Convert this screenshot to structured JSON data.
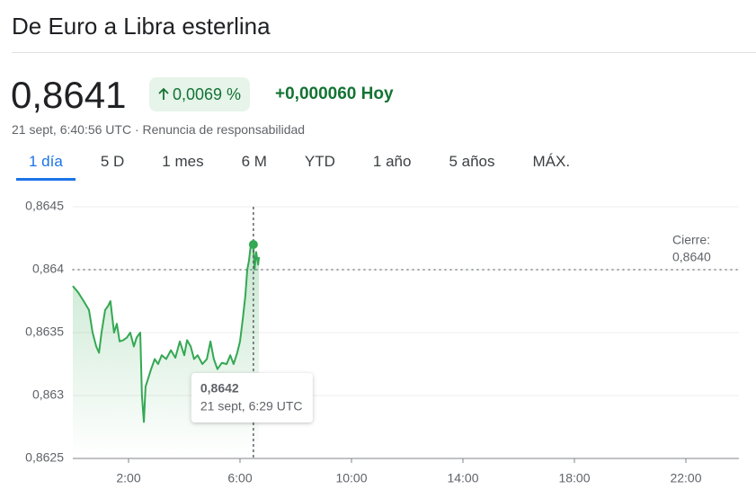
{
  "header": {
    "title": "De Euro a Libra esterlina",
    "price": "0,8641",
    "change_percent": "0,0069 %",
    "change_today": "+0,000060 Hoy",
    "timestamp": "21 sept, 6:40:56 UTC · Renuncia de responsabilidad"
  },
  "tabs": {
    "items": [
      "1 día",
      "5 D",
      "1 mes",
      "6 M",
      "YTD",
      "1 año",
      "5 años",
      "MÁX."
    ],
    "selected": 0
  },
  "chart_data": {
    "type": "line",
    "color": "#34a853",
    "x": [
      0.0,
      0.19,
      0.39,
      0.58,
      0.71,
      0.84,
      0.94,
      1.03,
      1.16,
      1.26,
      1.35,
      1.48,
      1.58,
      1.68,
      1.81,
      1.94,
      2.06,
      2.19,
      2.29,
      2.42,
      2.48,
      2.55,
      2.61,
      2.71,
      2.81,
      2.94,
      3.06,
      3.19,
      3.35,
      3.52,
      3.68,
      3.84,
      4.0,
      4.1,
      4.23,
      4.35,
      4.48,
      4.65,
      4.81,
      4.94,
      5.06,
      5.19,
      5.35,
      5.52,
      5.65,
      5.77,
      5.9,
      6.0,
      6.1,
      6.19,
      6.26,
      6.32,
      6.39,
      6.48,
      6.52,
      6.58,
      6.65,
      6.68
    ],
    "values": [
      0.86387,
      0.86382,
      0.86375,
      0.86368,
      0.8635,
      0.86339,
      0.86334,
      0.8635,
      0.86368,
      0.86371,
      0.86375,
      0.8635,
      0.86357,
      0.86343,
      0.86344,
      0.86346,
      0.8635,
      0.86339,
      0.86346,
      0.8635,
      0.863,
      0.86279,
      0.86307,
      0.86314,
      0.86321,
      0.86329,
      0.86325,
      0.86332,
      0.86329,
      0.86336,
      0.8633,
      0.86343,
      0.86332,
      0.86344,
      0.86339,
      0.86329,
      0.86332,
      0.86325,
      0.86329,
      0.86343,
      0.86329,
      0.86321,
      0.86326,
      0.86325,
      0.86332,
      0.86325,
      0.86334,
      0.86343,
      0.86361,
      0.86379,
      0.864,
      0.86407,
      0.8642,
      0.8642,
      0.864,
      0.86414,
      0.86404,
      0.8641
    ],
    "xlim": [
      0,
      24
    ],
    "xticks": [
      {
        "value": 2,
        "label": "2:00"
      },
      {
        "value": 6,
        "label": "6:00"
      },
      {
        "value": 10,
        "label": "10:00"
      },
      {
        "value": 14,
        "label": "14:00"
      },
      {
        "value": 18,
        "label": "18:00"
      },
      {
        "value": 22,
        "label": "22:00"
      }
    ],
    "ylim": [
      0.8625,
      0.8645
    ],
    "yticks": [
      {
        "value": 0.8625,
        "label": "0,8625"
      },
      {
        "value": 0.863,
        "label": "0,863"
      },
      {
        "value": 0.8635,
        "label": "0,8635"
      },
      {
        "value": 0.864,
        "label": "0,864"
      },
      {
        "value": 0.8645,
        "label": "0,8645"
      }
    ],
    "grid": true,
    "previous_close": {
      "label": "Cierre:",
      "value": 0.864,
      "value_label": "0,8640"
    },
    "hover": {
      "x": 6.48,
      "value": 0.8642,
      "value_label": "0,8642",
      "time_label": "21 sept, 6:29 UTC"
    }
  }
}
